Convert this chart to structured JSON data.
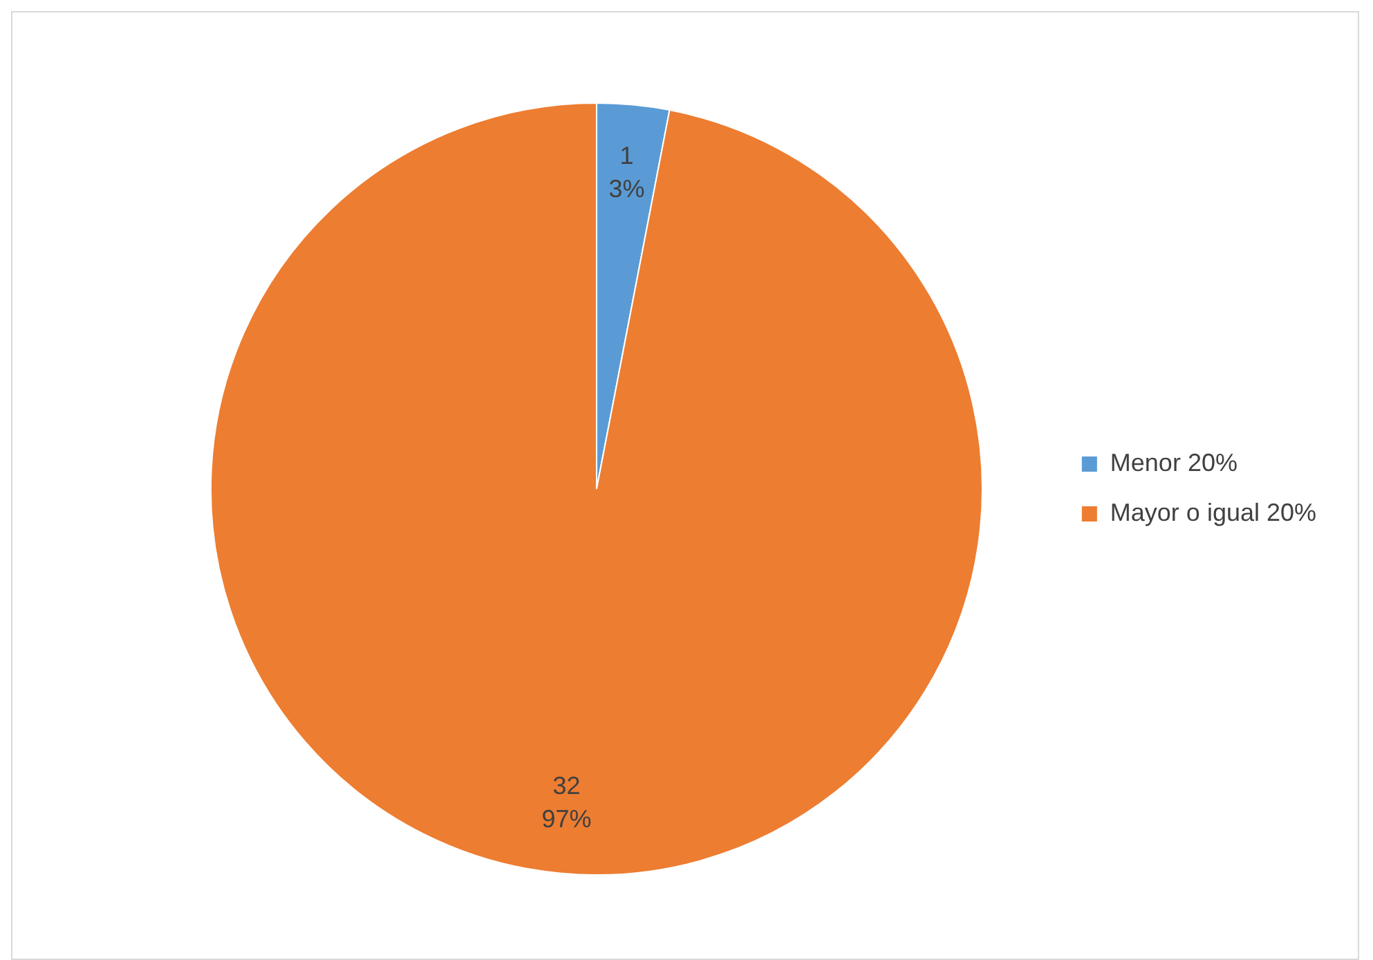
{
  "chart_data": {
    "type": "pie",
    "categories": [
      "Menor 20%",
      "Mayor o igual 20%"
    ],
    "values": [
      1,
      32
    ],
    "colors": [
      "#5b9bd5",
      "#ed7d31"
    ],
    "value_labels": [
      "1\n3%",
      "32\n97%"
    ],
    "legend": "right"
  }
}
